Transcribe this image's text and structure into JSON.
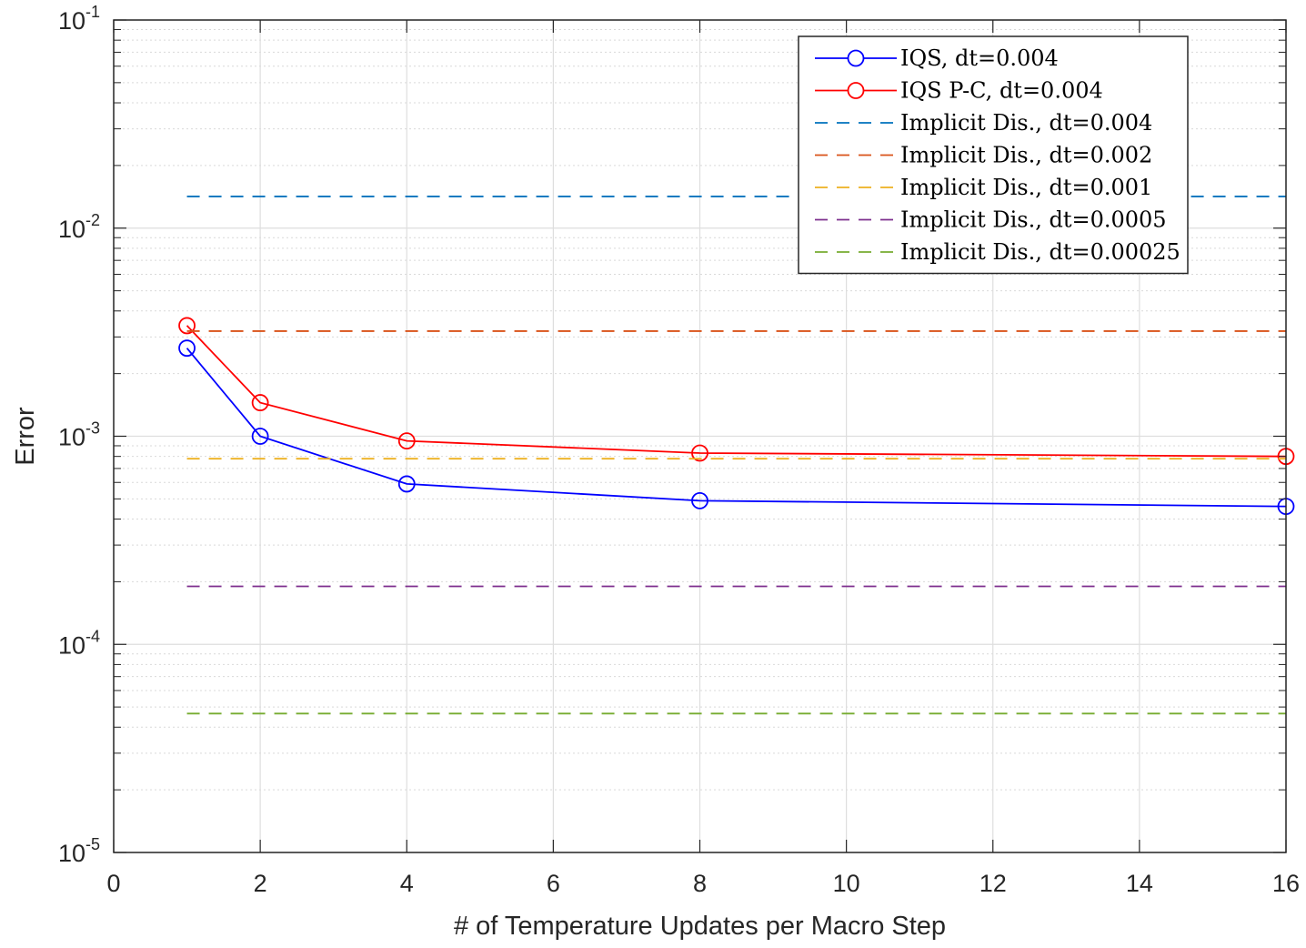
{
  "chart_data": {
    "type": "line",
    "xlabel": "# of Temperature Updates per Macro Step",
    "ylabel": "Error",
    "xlim": [
      0,
      16
    ],
    "ylim": [
      1e-05,
      0.1
    ],
    "yscale": "log",
    "grid": true,
    "minor_grid": true,
    "legend_position": "top-right",
    "x_ticks": [
      {
        "value": 0,
        "label": "0"
      },
      {
        "value": 2,
        "label": "2"
      },
      {
        "value": 4,
        "label": "4"
      },
      {
        "value": 6,
        "label": "6"
      },
      {
        "value": 8,
        "label": "8"
      },
      {
        "value": 10,
        "label": "10"
      },
      {
        "value": 12,
        "label": "12"
      },
      {
        "value": 14,
        "label": "14"
      },
      {
        "value": 16,
        "label": "16"
      }
    ],
    "y_ticks": [
      {
        "value": 0.1,
        "base": "10",
        "exp": "-1"
      },
      {
        "value": 0.01,
        "base": "10",
        "exp": "-2"
      },
      {
        "value": 0.001,
        "base": "10",
        "exp": "-3"
      },
      {
        "value": 0.0001,
        "base": "10",
        "exp": "-4"
      },
      {
        "value": 1e-05,
        "base": "10",
        "exp": "-5"
      }
    ],
    "series": [
      {
        "name": "IQS, dt=0.004",
        "color": "#0000ff",
        "style": "solid",
        "marker": "circle",
        "x": [
          1,
          2,
          4,
          8,
          16
        ],
        "y": [
          0.00265,
          0.001,
          0.00059,
          0.00049,
          0.00046
        ]
      },
      {
        "name": "IQS P-C, dt=0.004",
        "color": "#ff0000",
        "style": "solid",
        "marker": "circle",
        "x": [
          1,
          2,
          4,
          8,
          16
        ],
        "y": [
          0.0034,
          0.00145,
          0.00095,
          0.00083,
          0.0008
        ]
      },
      {
        "name": "Implicit Dis., dt=0.004",
        "color": "#0072bd",
        "style": "dashed",
        "marker": "none",
        "x": [
          1,
          16
        ],
        "y": [
          0.0142,
          0.0142
        ]
      },
      {
        "name": "Implicit Dis., dt=0.002",
        "color": "#d95319",
        "style": "dashed",
        "marker": "none",
        "x": [
          1,
          16
        ],
        "y": [
          0.0032,
          0.0032
        ]
      },
      {
        "name": "Implicit Dis., dt=0.001",
        "color": "#edb120",
        "style": "dashed",
        "marker": "none",
        "x": [
          1,
          16
        ],
        "y": [
          0.00078,
          0.00078
        ]
      },
      {
        "name": "Implicit Dis., dt=0.0005",
        "color": "#7e2f8e",
        "style": "dashed",
        "marker": "none",
        "x": [
          1,
          16
        ],
        "y": [
          0.00019,
          0.00019
        ]
      },
      {
        "name": "Implicit Dis., dt=0.00025",
        "color": "#77ac30",
        "style": "dashed",
        "marker": "none",
        "x": [
          1,
          16
        ],
        "y": [
          4.65e-05,
          4.65e-05
        ]
      }
    ]
  }
}
